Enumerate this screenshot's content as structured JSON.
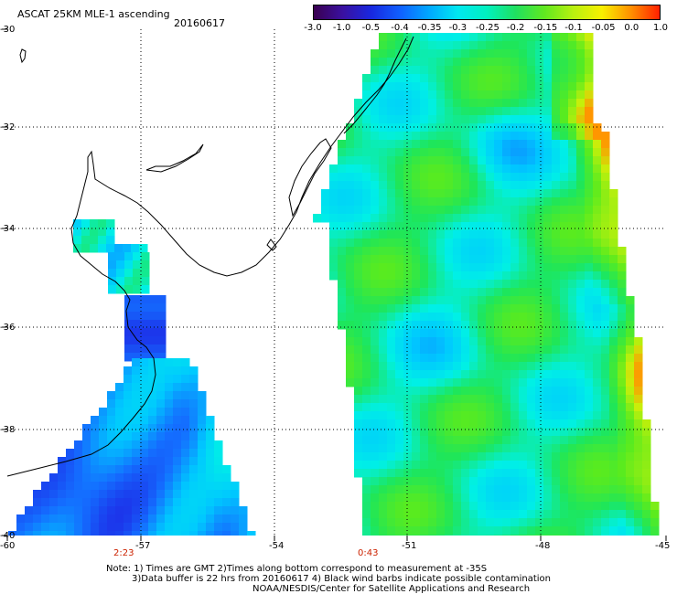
{
  "header": {
    "title": "ASCAT 25KM MLE-1 ascending",
    "date": "20160617"
  },
  "colorbar": {
    "ticks": [
      "-3.0",
      "-1.0",
      "-0.5",
      "-0.4",
      "-0.35",
      "-0.3",
      "-0.25",
      "-0.2",
      "-0.15",
      "-0.1",
      "-0.05",
      "0.0",
      "1.0"
    ],
    "colors": [
      "#3a0050",
      "#3a10a0",
      "#1828e0",
      "#1060ff",
      "#00a8ff",
      "#00e8f0",
      "#00f0c0",
      "#20e060",
      "#60e820",
      "#b8f010",
      "#f8f000",
      "#ff9000",
      "#ff2000"
    ]
  },
  "axes": {
    "lat_labels": [
      "-30",
      "-32",
      "-34",
      "-36",
      "-38",
      "-40"
    ],
    "lon_labels": [
      "-60",
      "-57",
      "-54",
      "-51",
      "-48",
      "-45"
    ]
  },
  "pass_times": [
    "2:23",
    "0:43"
  ],
  "notes": [
    "Note: 1) Times are GMT 2)Times along bottom correspond to measurement at -35S",
    "3)Data buffer is 22 hrs from 20160617 4) Black wind barbs indicate possible contamination",
    "NOAA/NESDIS/Center for Satellite Applications and Research"
  ],
  "colors": {
    "coast": "#000000",
    "grid": "#000000",
    "pass_time_label": "#cc2200"
  }
}
